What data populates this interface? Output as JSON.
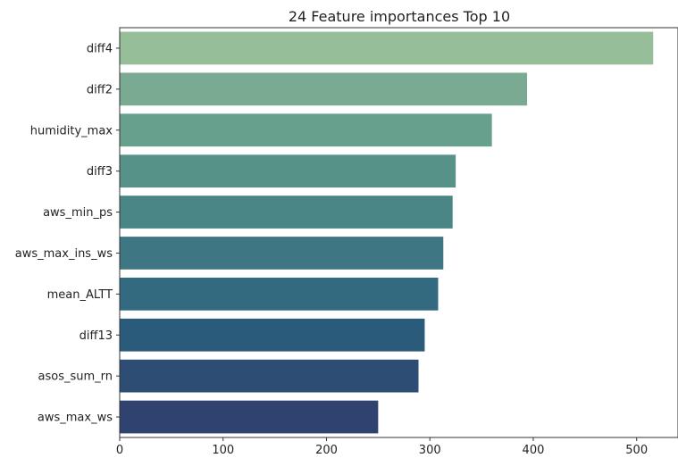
{
  "chart_data": {
    "type": "bar",
    "orientation": "horizontal",
    "title": "24 Feature importances Top 10",
    "xlabel": "",
    "ylabel": "",
    "categories": [
      "diff4",
      "diff2",
      "humidity_max",
      "diff3",
      "aws_min_ps",
      "aws_max_ins_ws",
      "mean_ALTT",
      "diff13",
      "asos_sum_rn",
      "aws_max_ws"
    ],
    "values": [
      516,
      394,
      360,
      325,
      322,
      313,
      308,
      295,
      289,
      250
    ],
    "colors": [
      "#96be98",
      "#7aaa91",
      "#67a08d",
      "#579288",
      "#4a8685",
      "#3e7683",
      "#336a7f",
      "#2b5b7a",
      "#2d4d75",
      "#2f4270"
    ],
    "xlim": [
      0,
      540
    ],
    "xticks": [
      0,
      100,
      200,
      300,
      400,
      500
    ],
    "grid": false,
    "legend": "none"
  }
}
